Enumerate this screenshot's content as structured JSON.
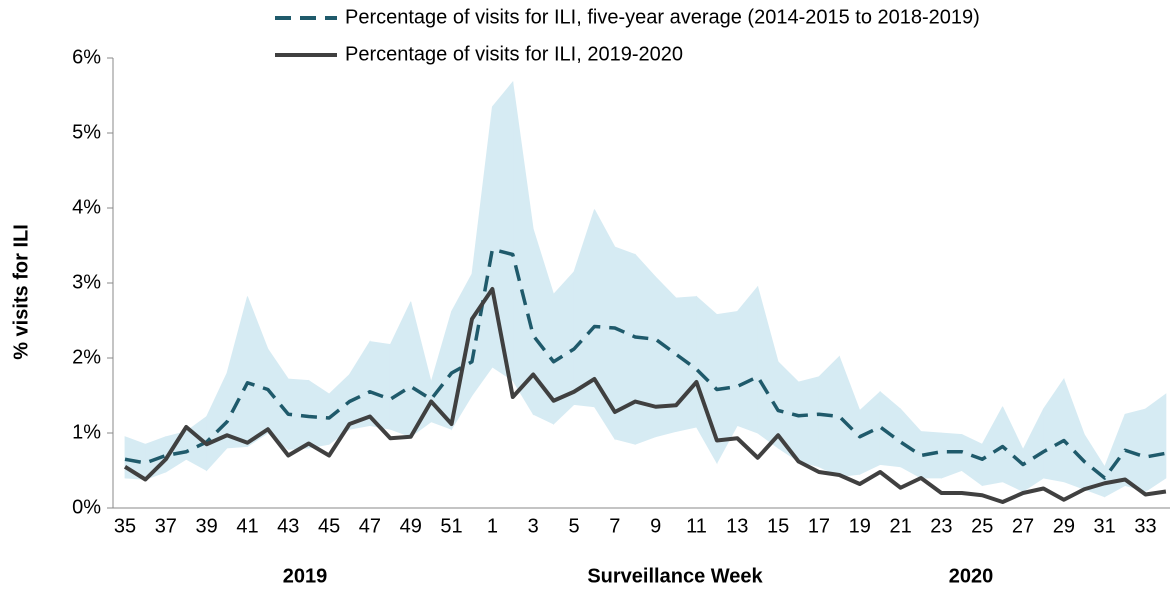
{
  "chart_data": {
    "type": "line",
    "y_label": "% visits for ILI",
    "x_label": "Surveillance Week",
    "year_labels": [
      "2019",
      "2020"
    ],
    "categories": [
      "35",
      null,
      "37",
      null,
      "39",
      null,
      "41",
      null,
      "43",
      null,
      "45",
      null,
      "47",
      null,
      "49",
      null,
      "51",
      null,
      "1",
      null,
      "3",
      null,
      "5",
      null,
      "7",
      null,
      "9",
      null,
      "11",
      null,
      "13",
      null,
      "15",
      null,
      "17",
      null,
      "19",
      null,
      "21",
      null,
      "23",
      null,
      "25",
      null,
      "27",
      null,
      "29",
      null,
      "31",
      null,
      "33",
      null
    ],
    "series": [
      {
        "name": "Percentage of visits for ILI, five-year average (2014-2015 to 2018-2019)",
        "color": "#1f5a6b",
        "dash": true,
        "values": [
          0.65,
          0.6,
          0.7,
          0.75,
          0.88,
          1.15,
          1.67,
          1.58,
          1.25,
          1.22,
          1.2,
          1.42,
          1.55,
          1.45,
          1.62,
          1.45,
          1.8,
          1.95,
          3.45,
          3.38,
          2.3,
          1.95,
          2.12,
          2.42,
          2.4,
          2.28,
          2.25,
          2.05,
          1.85,
          1.58,
          1.62,
          1.75,
          1.3,
          1.23,
          1.25,
          1.22,
          0.95,
          1.08,
          0.88,
          0.7,
          0.75,
          0.75,
          0.65,
          0.82,
          0.58,
          0.75,
          0.9,
          0.62,
          0.4,
          0.77,
          0.68,
          0.73
        ]
      },
      {
        "name": "Percentage of visits for ILI, 2019-2020",
        "color": "#404040",
        "dash": false,
        "values": [
          0.55,
          0.38,
          0.65,
          1.08,
          0.85,
          0.97,
          0.87,
          1.05,
          0.7,
          0.86,
          0.7,
          1.12,
          1.22,
          0.93,
          0.95,
          1.42,
          1.12,
          2.52,
          2.92,
          1.48,
          1.78,
          1.43,
          1.55,
          1.72,
          1.28,
          1.42,
          1.35,
          1.37,
          1.68,
          0.9,
          0.93,
          0.67,
          0.97,
          0.62,
          0.48,
          0.44,
          0.32,
          0.48,
          0.27,
          0.4,
          0.2,
          0.2,
          0.17,
          0.08,
          0.2,
          0.26,
          0.11,
          0.25,
          0.33,
          0.38,
          0.18,
          0.22
        ]
      }
    ],
    "band": {
      "color": "#d6ebf3",
      "upper": [
        0.95,
        0.85,
        0.95,
        1.02,
        1.22,
        1.8,
        2.82,
        2.12,
        1.72,
        1.7,
        1.52,
        1.78,
        2.22,
        2.18,
        2.75,
        1.68,
        2.62,
        3.12,
        5.35,
        5.68,
        3.72,
        2.85,
        3.15,
        3.98,
        3.48,
        3.38,
        3.08,
        2.8,
        2.82,
        2.58,
        2.62,
        2.95,
        1.95,
        1.68,
        1.75,
        2.02,
        1.3,
        1.55,
        1.32,
        1.02,
        1.0,
        0.98,
        0.85,
        1.35,
        0.78,
        1.32,
        1.72,
        0.98,
        0.55,
        1.25,
        1.32,
        1.52
      ],
      "lower": [
        0.4,
        0.38,
        0.48,
        0.65,
        0.5,
        0.8,
        0.82,
        1.0,
        0.78,
        0.8,
        0.85,
        1.05,
        1.1,
        1.05,
        0.95,
        1.15,
        1.05,
        1.5,
        1.88,
        1.7,
        1.25,
        1.12,
        1.38,
        1.35,
        0.92,
        0.85,
        0.95,
        1.02,
        1.08,
        0.6,
        1.1,
        1.0,
        0.8,
        0.62,
        0.55,
        0.42,
        0.45,
        0.58,
        0.55,
        0.4,
        0.4,
        0.5,
        0.3,
        0.35,
        0.22,
        0.4,
        0.35,
        0.25,
        0.15,
        0.3,
        0.22,
        0.4
      ]
    },
    "ylim": [
      0,
      6
    ],
    "yticks": [
      {
        "value": 0,
        "label": "0%"
      },
      {
        "value": 1,
        "label": "1%"
      },
      {
        "value": 2,
        "label": "2%"
      },
      {
        "value": 3,
        "label": "3%"
      },
      {
        "value": 4,
        "label": "4%"
      },
      {
        "value": 5,
        "label": "5%"
      },
      {
        "value": 6,
        "label": "6%"
      }
    ],
    "grid": false,
    "legend": "top"
  }
}
